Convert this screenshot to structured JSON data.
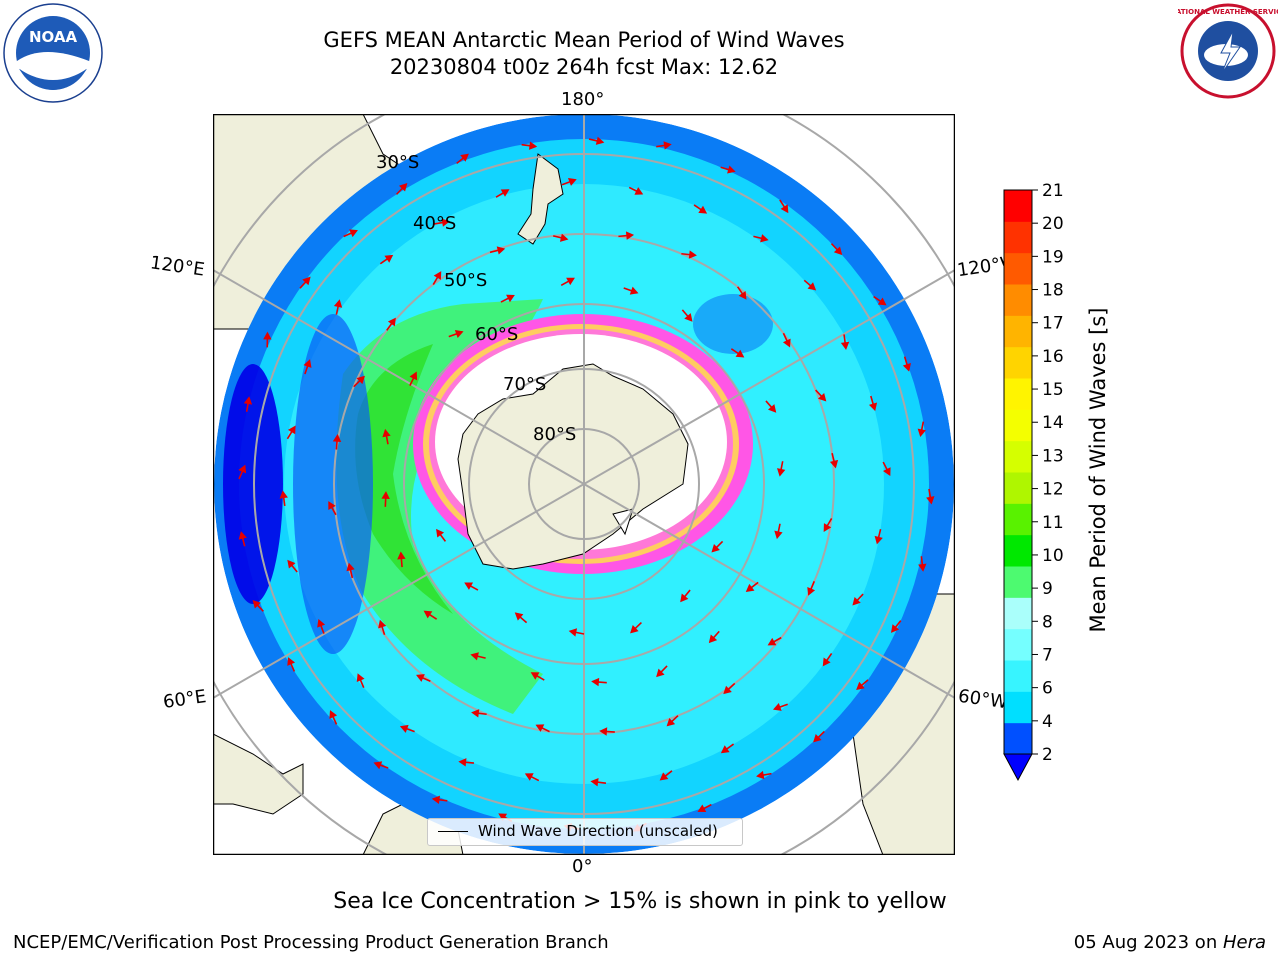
{
  "title": {
    "line1": "GEFS MEAN Antarctic Mean Period of Wind Waves",
    "line2": "20230804 t00z 264h fcst   Max: 12.62"
  },
  "map": {
    "longitude_labels": [
      "180°",
      "120°E",
      "120°W",
      "60°E",
      "60°W",
      "0°"
    ],
    "latitude_labels": [
      "30°S",
      "40°S",
      "50°S",
      "60°S",
      "70°S",
      "80°S"
    ],
    "legend_label": "Wind Wave Direction (unscaled)"
  },
  "colorbar": {
    "label": "Mean Period of Wind Waves [s]",
    "ticks": [
      "2",
      "4",
      "6",
      "7",
      "8",
      "9",
      "10",
      "11",
      "12",
      "13",
      "14",
      "15",
      "16",
      "17",
      "18",
      "19",
      "20",
      "21"
    ],
    "colors": [
      "#0050ff",
      "#00dfff",
      "#37f4ff",
      "#75ffff",
      "#aafffb",
      "#4dfa70",
      "#00e800",
      "#59f200",
      "#aff600",
      "#d5ff00",
      "#f4ff00",
      "#fff400",
      "#ffd400",
      "#ffb400",
      "#ff8c00",
      "#ff5a00",
      "#ff3200",
      "#ff0000"
    ],
    "under_color": "#0000ff"
  },
  "notes": {
    "ice": "Sea Ice Concentration > 15% is shown in pink to yellow",
    "credit_left": "NCEP/EMC/Verification Post Processing Product Generation Branch",
    "credit_date": "05 Aug 2023 on ",
    "credit_host": "Hera"
  },
  "logos": {
    "noaa_text": "NOAA",
    "nws_text": "NATIONAL WEATHER SERVICE"
  }
}
